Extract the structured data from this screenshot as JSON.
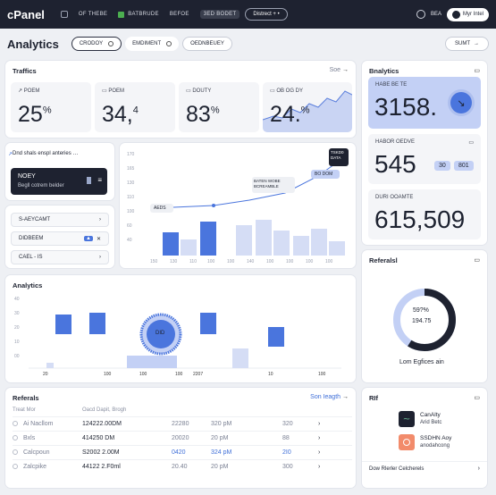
{
  "topbar": {
    "brand": "cPanel",
    "nav": [
      "OF THEBE",
      "BATBRUDE",
      "BEFOE",
      "3ED BODET"
    ],
    "nav_badge": "3ED",
    "select": "Distrect + •",
    "user_code": "BEA",
    "user_button": "Myr Intel"
  },
  "subbar": {
    "title": "Analytics",
    "chips": [
      "CRODOY",
      "EMDIMENT",
      "OEDNBEUEY"
    ],
    "submit": "SUMT"
  },
  "traffic": {
    "title": "Traffics",
    "link": "Soe",
    "stats": [
      {
        "label": "POEM",
        "value": "25",
        "unit": "%"
      },
      {
        "label": "POEM",
        "value": "34,",
        "unit": "4"
      },
      {
        "label": "DOUTY",
        "value": "83",
        "unit": "%"
      },
      {
        "label": "OB OG DY",
        "value": "24.",
        "unit": "%"
      }
    ]
  },
  "analytics_side": {
    "title": "Bnalytics",
    "tiles": [
      {
        "label": "HABE BE TE",
        "value": "3158."
      },
      {
        "label": "HABOR OEDVE",
        "value": "545",
        "chips": [
          "30",
          "801"
        ]
      },
      {
        "label": "DURI OOAMTE",
        "value": "615,509"
      }
    ]
  },
  "leftpanel": {
    "notice": "Dnd shals enspl anteries …",
    "dark_title": "NOEY",
    "dark_sub": "Begll cotrem belder",
    "rows": [
      "S-AEYCAMT",
      "DIDBEEM",
      "CAEL - IS"
    ]
  },
  "linechart": {
    "tooltip_top": "BATEN WOBE\nBCREAMBLE",
    "tooltip_mid": "BO DOM",
    "label_left": "AEDS",
    "label_right": "TSKD0\nDATA"
  },
  "analytics_mid": {
    "title": "Analytics",
    "gauge": "DID",
    "x_labels": [
      "20",
      "100",
      "100",
      "2207",
      "10",
      "100"
    ]
  },
  "referals_donut": {
    "title": "Referalsl",
    "pct": "59?%",
    "sub": "194.75",
    "caption": "Lom Egfices ain",
    "chart_data": {
      "type": "pie",
      "values": [
        59,
        41
      ]
    }
  },
  "referrals_table": {
    "title": "Referals",
    "link": "Son Ieagth",
    "headers": [
      "Treat Mor",
      "Oacd Dapit, Brogh"
    ],
    "rows": [
      {
        "name": "Ai Nacllom",
        "v1": "124222.00DM",
        "v2": "22280",
        "v3": "320 pM",
        "v4": "320"
      },
      {
        "name": "Bxls",
        "v1": "414250 DM",
        "v2": "20020",
        "v3": "20 pM",
        "v4": "88"
      },
      {
        "name": "Calcpoun",
        "v1": "S2002 2.00M",
        "v2": "0420",
        "v3": "324 pM",
        "v4": "2I0"
      },
      {
        "name": "Zalcpike",
        "v1": "44122 2.F0ml",
        "v2": "20.40",
        "v3": "20 pM",
        "v4": "300"
      }
    ]
  },
  "rif": {
    "title": "RIf",
    "items": [
      {
        "name": "CanAlty",
        "sub": "Arid Betc"
      },
      {
        "name": "SSDHN Aoy",
        "sub": "anodahcong"
      }
    ],
    "footer": "Dow Rlerler Celcherels"
  },
  "colors": {
    "accent": "#3f6fd8",
    "accent_light": "#c3d0f5",
    "dark": "#1e2230"
  }
}
